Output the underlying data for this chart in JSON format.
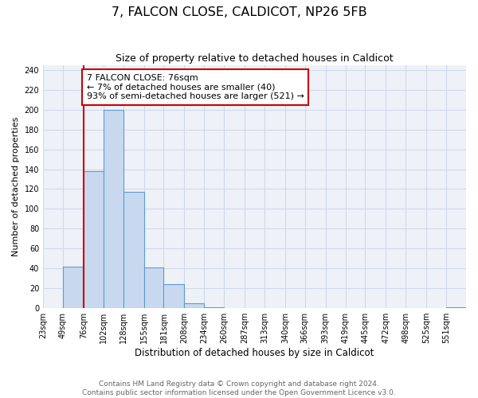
{
  "title": "7, FALCON CLOSE, CALDICOT, NP26 5FB",
  "subtitle": "Size of property relative to detached houses in Caldicot",
  "xlabel": "Distribution of detached houses by size in Caldicot",
  "ylabel": "Number of detached properties",
  "bar_edges": [
    23,
    49,
    76,
    102,
    128,
    155,
    181,
    208,
    234,
    260,
    287,
    313,
    340,
    366,
    393,
    419,
    445,
    472,
    498,
    525,
    551
  ],
  "bar_heights": [
    0,
    42,
    138,
    200,
    117,
    41,
    24,
    5,
    1,
    0,
    0,
    0,
    0,
    0,
    0,
    0,
    0,
    0,
    0,
    0,
    1
  ],
  "bar_color": "#c8d9ef",
  "bar_edge_color": "#5b9bd5",
  "bar_edge_width": 0.8,
  "grid_color": "#d0d8e8",
  "bg_color": "#eef2f8",
  "red_line_x": 76,
  "annotation_text": "7 FALCON CLOSE: 76sqm\n← 7% of detached houses are smaller (40)\n93% of semi-detached houses are larger (521) →",
  "annotation_box_color": "#ffffff",
  "annotation_box_edge_color": "#cc0000",
  "ylim": [
    0,
    245
  ],
  "yticks": [
    0,
    20,
    40,
    60,
    80,
    100,
    120,
    140,
    160,
    180,
    200,
    220,
    240
  ],
  "tick_labels": [
    "23sqm",
    "49sqm",
    "76sqm",
    "102sqm",
    "128sqm",
    "155sqm",
    "181sqm",
    "208sqm",
    "234sqm",
    "260sqm",
    "287sqm",
    "313sqm",
    "340sqm",
    "366sqm",
    "393sqm",
    "419sqm",
    "445sqm",
    "472sqm",
    "498sqm",
    "525sqm",
    "551sqm"
  ],
  "footer_line1": "Contains HM Land Registry data © Crown copyright and database right 2024.",
  "footer_line2": "Contains public sector information licensed under the Open Government Licence v3.0.",
  "title_fontsize": 11.5,
  "subtitle_fontsize": 9,
  "xlabel_fontsize": 8.5,
  "ylabel_fontsize": 8,
  "tick_fontsize": 7,
  "footer_fontsize": 6.5,
  "annotation_fontsize": 8
}
